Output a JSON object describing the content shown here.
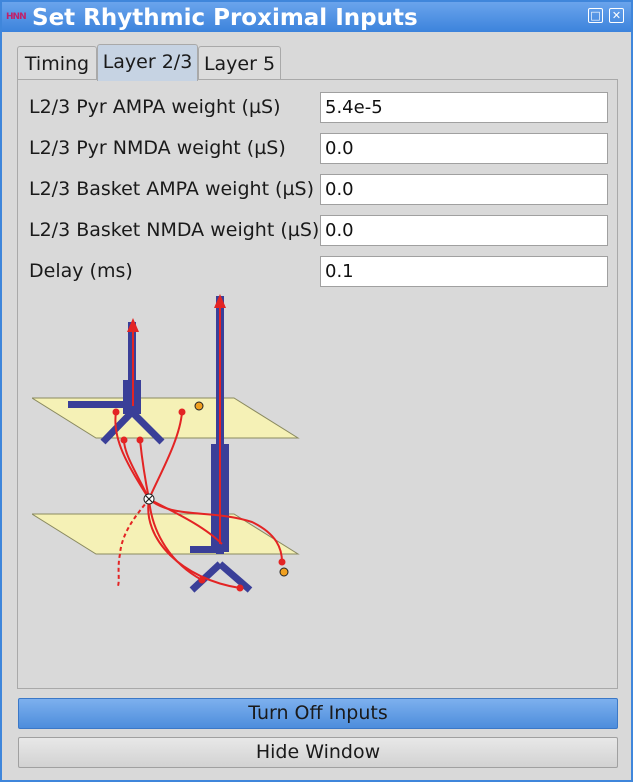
{
  "window": {
    "title": "Set Rhythmic Proximal Inputs",
    "app_icon_text": "HNN",
    "controls": [
      "restore-icon",
      "close-icon"
    ]
  },
  "tabs": [
    {
      "label": "Timing",
      "active": false
    },
    {
      "label": "Layer 2/3",
      "active": true
    },
    {
      "label": "Layer 5",
      "active": false
    }
  ],
  "fields": [
    {
      "label": "L2/3 Pyr AMPA weight (µS)",
      "value": "5.4e-5"
    },
    {
      "label": "L2/3 Pyr NMDA weight (µS)",
      "value": "0.0"
    },
    {
      "label": "L2/3 Basket AMPA weight (µS)",
      "value": "0.0"
    },
    {
      "label": "L2/3 Basket NMDA weight (µS)",
      "value": "0.0"
    },
    {
      "label": "Delay (ms)",
      "value": "0.1"
    }
  ],
  "buttons": {
    "turn_off": "Turn Off Inputs",
    "hide": "Hide Window"
  },
  "colors": {
    "titlebar": "#3c83dc",
    "neuron": "#3a3f98",
    "input_line": "#e32424",
    "layer_plane": "#f4f0b4",
    "basket_cell": "#f0a020"
  }
}
